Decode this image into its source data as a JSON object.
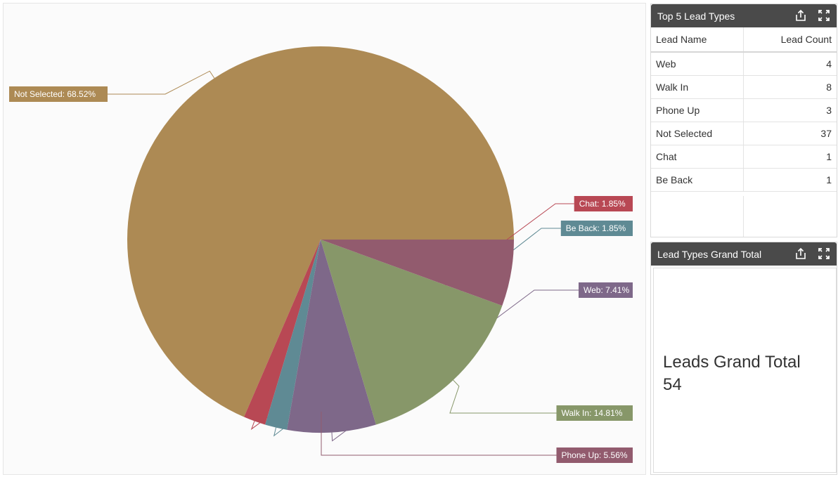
{
  "chart_data": {
    "type": "pie",
    "slices": [
      {
        "label": "Not Selected",
        "value": 68.52,
        "label_text": "Not Selected: 68.52%",
        "color": "#ad8a54"
      },
      {
        "label": "Chat",
        "value": 1.85,
        "label_text": "Chat: 1.85%",
        "color": "#b84854"
      },
      {
        "label": "Be Back",
        "value": 1.85,
        "label_text": "Be Back: 1.85%",
        "color": "#5f8a94"
      },
      {
        "label": "Web",
        "value": 7.41,
        "label_text": "Web: 7.41%",
        "color": "#7e6889"
      },
      {
        "label": "Walk In",
        "value": 14.81,
        "label_text": "Walk In: 14.81%",
        "color": "#879769"
      },
      {
        "label": "Phone Up",
        "value": 5.56,
        "label_text": "Phone Up: 5.56%",
        "color": "#925b6e"
      }
    ]
  },
  "top_leads": {
    "title": "Top 5 Lead Types",
    "share_icon": "share-icon",
    "expand_icon": "expand-icon",
    "columns": [
      "Lead Name",
      "Lead Count"
    ],
    "rows": [
      {
        "name": "Web",
        "count": "4"
      },
      {
        "name": "Walk In",
        "count": "8"
      },
      {
        "name": "Phone Up",
        "count": "3"
      },
      {
        "name": "Not Selected",
        "count": "37"
      },
      {
        "name": "Chat",
        "count": "1"
      },
      {
        "name": "Be Back",
        "count": "1"
      }
    ]
  },
  "grand_total": {
    "title": "Lead Types Grand Total",
    "label": "Leads Grand Total",
    "value": "54"
  },
  "colors": {
    "header_bg": "#4a4a4a"
  }
}
